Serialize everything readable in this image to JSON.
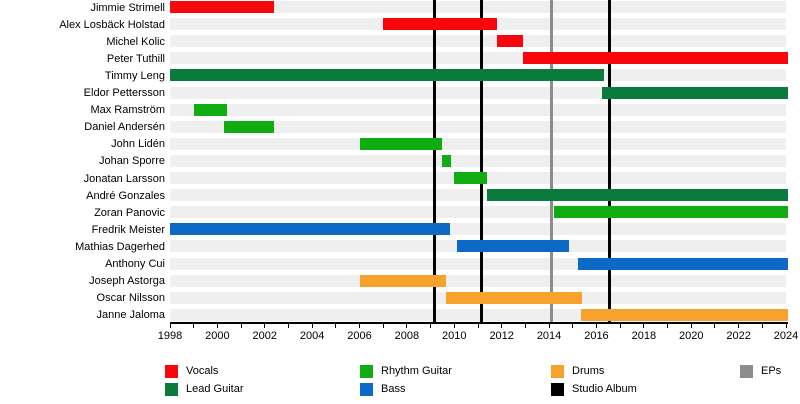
{
  "chart_data": {
    "type": "timeline",
    "x_axis": {
      "min": 1998,
      "max": 2024,
      "minor_tick_every": 1,
      "tick_labels": [
        "1998",
        "2000",
        "2002",
        "2004",
        "2006",
        "2008",
        "2010",
        "2012",
        "2014",
        "2016",
        "2018",
        "2020",
        "2022",
        "2024"
      ]
    },
    "role_colors": {
      "Vocals": "#f7060b",
      "Lead Guitar": "#0a7b3d",
      "Rhythm Guitar": "#11ac11",
      "Bass": "#0c6ac6",
      "Drums": "#f9a12d",
      "Studio Album": "#000000",
      "EPs": "#8c8c8c"
    },
    "members": [
      {
        "name": "Jimmie Strimell",
        "role": "Vocals",
        "spans": [
          [
            1998.0,
            2002.4
          ]
        ]
      },
      {
        "name": "Alex Losbäck Holstad",
        "role": "Vocals",
        "spans": [
          [
            2007.0,
            2011.8
          ]
        ]
      },
      {
        "name": "Michel Kolic",
        "role": "Vocals",
        "spans": [
          [
            2011.8,
            2012.9
          ]
        ]
      },
      {
        "name": "Peter Tuthill",
        "role": "Vocals",
        "spans": [
          [
            2012.9,
            2024.1
          ]
        ]
      },
      {
        "name": "Timmy Leng",
        "role": "Lead Guitar",
        "spans": [
          [
            1998.0,
            2016.3
          ]
        ]
      },
      {
        "name": "Eldor Pettersson",
        "role": "Lead Guitar",
        "spans": [
          [
            2016.25,
            2024.1
          ]
        ]
      },
      {
        "name": "Max Ramström",
        "role": "Rhythm Guitar",
        "spans": [
          [
            1999.0,
            2000.4
          ]
        ]
      },
      {
        "name": "Daniel Andersén",
        "role": "Rhythm Guitar",
        "spans": [
          [
            2000.3,
            2002.4
          ]
        ]
      },
      {
        "name": "John Lidén",
        "role": "Rhythm Guitar",
        "spans": [
          [
            2006.0,
            2009.5
          ]
        ]
      },
      {
        "name": "Johan Sporre",
        "role": "Rhythm Guitar",
        "spans": [
          [
            2009.5,
            2009.85
          ]
        ]
      },
      {
        "name": "Jonatan Larsson",
        "role": "Rhythm Guitar",
        "spans": [
          [
            2010.0,
            2011.4
          ]
        ]
      },
      {
        "name": "André Gonzales",
        "role": "Lead Guitar",
        "spans": [
          [
            2011.4,
            2024.1
          ]
        ]
      },
      {
        "name": "Zoran Panovic",
        "role": "Rhythm Guitar",
        "spans": [
          [
            2014.2,
            2024.1
          ]
        ]
      },
      {
        "name": "Fredrik Meister",
        "role": "Bass",
        "spans": [
          [
            1998.0,
            2009.8
          ]
        ]
      },
      {
        "name": "Mathias Dagerhed",
        "role": "Bass",
        "spans": [
          [
            2010.1,
            2014.85
          ]
        ]
      },
      {
        "name": "Anthony Cui",
        "role": "Bass",
        "spans": [
          [
            2015.2,
            2024.1
          ]
        ]
      },
      {
        "name": "Joseph Astorga",
        "role": "Drums",
        "spans": [
          [
            2006.0,
            2009.65
          ]
        ]
      },
      {
        "name": "Oscar Nilsson",
        "role": "Drums",
        "spans": [
          [
            2009.65,
            2015.4
          ]
        ]
      },
      {
        "name": "Janne Jaloma",
        "role": "Drums",
        "spans": [
          [
            2015.35,
            2024.1
          ]
        ]
      }
    ],
    "events": {
      "studio_albums": [
        2009.15,
        2011.15,
        2016.55
      ],
      "eps": [
        2014.1
      ]
    },
    "legend": [
      {
        "label": "Vocals",
        "key": "Vocals",
        "col": 0,
        "row": 0
      },
      {
        "label": "Lead Guitar",
        "key": "Lead Guitar",
        "col": 0,
        "row": 1
      },
      {
        "label": "Rhythm Guitar",
        "key": "Rhythm Guitar",
        "col": 1,
        "row": 0
      },
      {
        "label": "Bass",
        "key": "Bass",
        "col": 1,
        "row": 1
      },
      {
        "label": "Drums",
        "key": "Drums",
        "col": 2,
        "row": 0
      },
      {
        "label": "Studio Album",
        "key": "Studio Album",
        "col": 2,
        "row": 1
      },
      {
        "label": "EPs",
        "key": "EPs",
        "col": 3,
        "row": 0
      }
    ]
  }
}
